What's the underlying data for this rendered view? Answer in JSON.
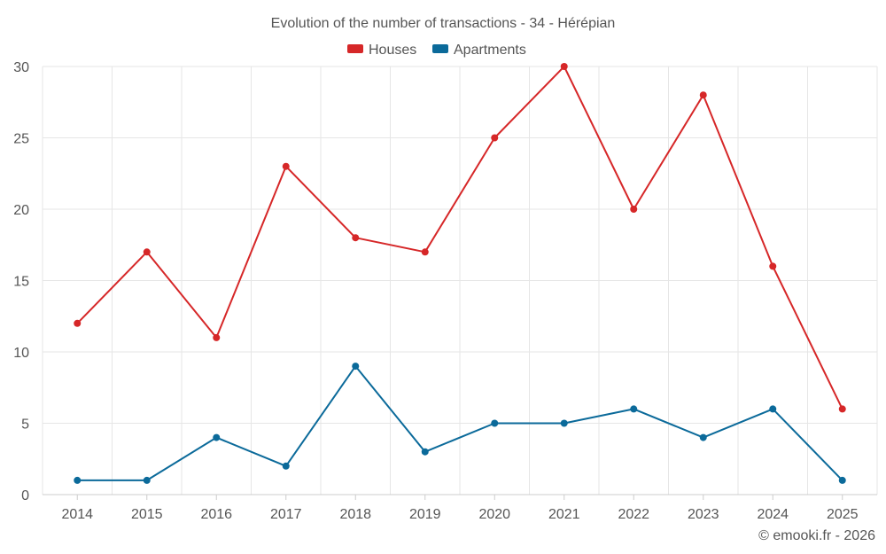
{
  "chart_data": {
    "type": "line",
    "title": "Evolution of the number of transactions - 34 - Hérépian",
    "categories": [
      "2014",
      "2015",
      "2016",
      "2017",
      "2018",
      "2019",
      "2020",
      "2021",
      "2022",
      "2023",
      "2024",
      "2025"
    ],
    "series": [
      {
        "name": "Houses",
        "color": "#d62728",
        "values": [
          12,
          17,
          11,
          23,
          18,
          17,
          25,
          30,
          20,
          28,
          16,
          6
        ]
      },
      {
        "name": "Apartments",
        "color": "#0b6a9a",
        "values": [
          1,
          1,
          4,
          2,
          9,
          3,
          5,
          5,
          6,
          4,
          6,
          1
        ]
      }
    ],
    "ylim": [
      0,
      30
    ],
    "yticks": [
      "0",
      "5",
      "10",
      "15",
      "20",
      "25",
      "30"
    ],
    "grid": true,
    "legend": "top-center",
    "xlabel": "",
    "ylabel": ""
  },
  "credit": "© emooki.fr - 2026"
}
